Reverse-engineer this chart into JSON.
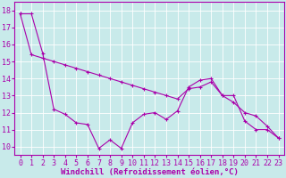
{
  "xlabel": "Windchill (Refroidissement éolien,°C)",
  "background_color": "#c8eaea",
  "grid_color": "#ffffff",
  "line_color": "#aa00aa",
  "marker": "+",
  "x_values": [
    0,
    1,
    2,
    3,
    4,
    5,
    6,
    7,
    8,
    9,
    10,
    11,
    12,
    13,
    14,
    15,
    16,
    17,
    18,
    19,
    20,
    21,
    22,
    23
  ],
  "line1_y": [
    17.8,
    17.8,
    15.5,
    12.2,
    11.9,
    11.4,
    11.3,
    9.9,
    10.4,
    9.9,
    11.4,
    11.9,
    12.0,
    11.6,
    12.1,
    13.5,
    13.9,
    14.0,
    13.0,
    13.0,
    11.5,
    11.0,
    11.0,
    10.5
  ],
  "line2_y": [
    17.8,
    15.4,
    15.2,
    15.0,
    14.8,
    14.6,
    14.4,
    14.2,
    14.0,
    13.8,
    13.6,
    13.4,
    13.2,
    13.0,
    12.8,
    13.4,
    13.5,
    13.8,
    13.0,
    12.6,
    12.0,
    11.8,
    11.2,
    10.5
  ],
  "ylim": [
    9.5,
    18.5
  ],
  "xlim": [
    -0.5,
    23.5
  ],
  "yticks": [
    10,
    11,
    12,
    13,
    14,
    15,
    16,
    17,
    18
  ],
  "xticks": [
    0,
    1,
    2,
    3,
    4,
    5,
    6,
    7,
    8,
    9,
    10,
    11,
    12,
    13,
    14,
    15,
    16,
    17,
    18,
    19,
    20,
    21,
    22,
    23
  ],
  "xlabel_fontsize": 6.5,
  "tick_fontsize": 6,
  "line_width": 0.8,
  "marker_size": 3,
  "marker_ew": 0.8
}
